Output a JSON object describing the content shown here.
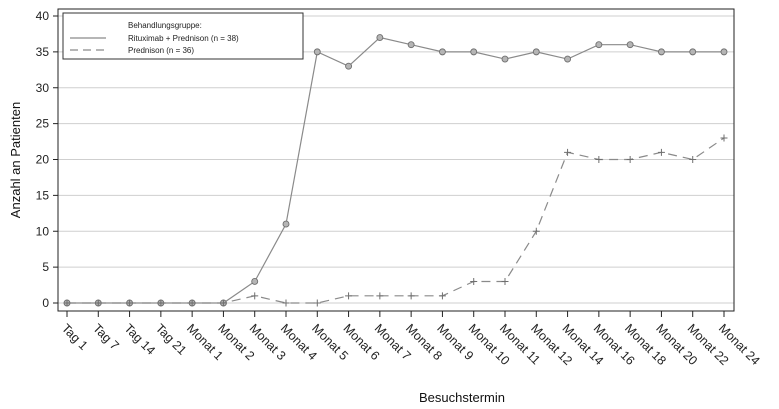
{
  "chart_data": {
    "type": "line",
    "xlabel": "Besuchstermin",
    "ylabel": "Anzahl an Patienten",
    "ylim": [
      0,
      40
    ],
    "yticks": [
      0,
      5,
      10,
      15,
      20,
      25,
      30,
      35,
      40
    ],
    "grid": "horizontal",
    "legend_position": "top-left",
    "legend_title": "Behandlungsgruppe:",
    "categories": [
      "Tag 1",
      "Tag 7",
      "Tag 14",
      "Tag 21",
      "Monat 1",
      "Monat 2",
      "Monat 3",
      "Monat 4",
      "Monat 5",
      "Monat 6",
      "Monat 7",
      "Monat 8",
      "Monat 9",
      "Monat 10",
      "Monat 11",
      "Monat 12",
      "Monat 14",
      "Monat 16",
      "Monat 18",
      "Monat 20",
      "Monat 22",
      "Monat 24"
    ],
    "series": [
      {
        "name": "Rituximab + Prednison (n = 38)",
        "style": "solid",
        "marker": "circle",
        "color": "#8a8a8a",
        "values": [
          0,
          0,
          0,
          0,
          0,
          0,
          3,
          11,
          35,
          33,
          37,
          36,
          35,
          35,
          34,
          35,
          34,
          36,
          36,
          35,
          35,
          35
        ]
      },
      {
        "name": "Prednison (n = 36)",
        "style": "dashed",
        "marker": "plus",
        "color": "#8a8a8a",
        "values": [
          0,
          0,
          0,
          0,
          0,
          0,
          1,
          0,
          0,
          1,
          1,
          1,
          1,
          3,
          3,
          10,
          21,
          20,
          20,
          21,
          20,
          23
        ]
      }
    ]
  }
}
